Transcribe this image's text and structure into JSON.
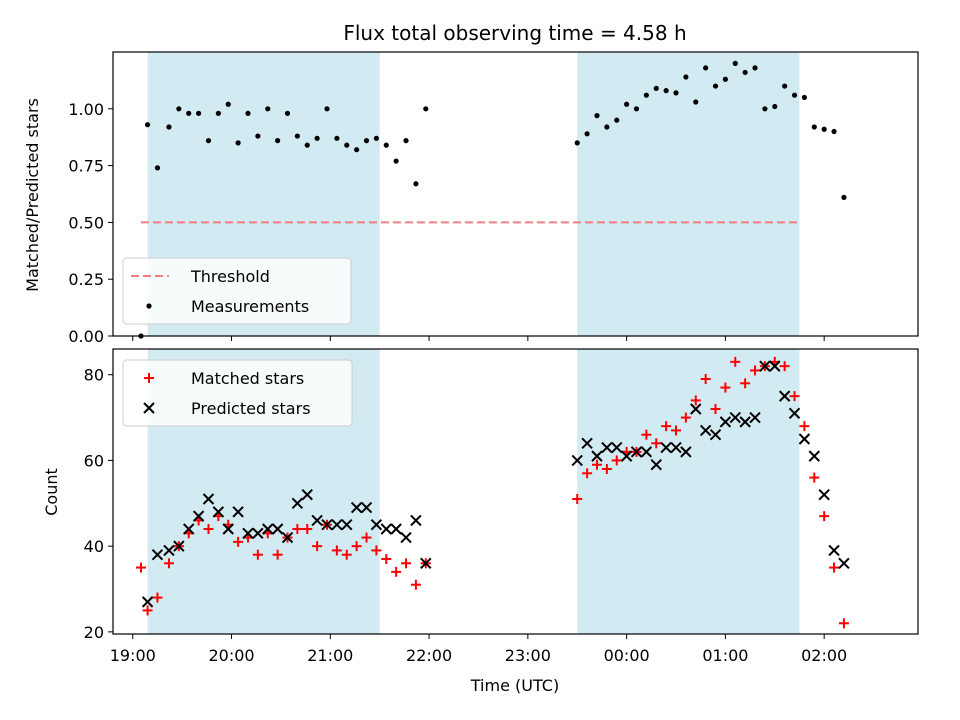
{
  "chart_data": [
    {
      "type": "scatter",
      "title": "Flux total observing time = 4.58 h",
      "ylabel": "Matched/Predicted stars",
      "xlabel": "",
      "ylim": [
        0,
        1.25
      ],
      "yticks": [
        "0.00",
        "0.25",
        "0.50",
        "0.75",
        "1.00"
      ],
      "ytick_values": [
        0,
        0.25,
        0.5,
        0.75,
        1.0
      ],
      "shaded_spans": [
        [
          "19:09",
          "21:30"
        ],
        [
          "23:30",
          "01:45"
        ]
      ],
      "shade_color": "#add8e6",
      "legend_position": "lower-left",
      "grid": false,
      "threshold": {
        "name": "Threshold",
        "y": 0.5,
        "x_start": "19:05",
        "x_end": "01:45",
        "color": "#f08080",
        "style": "dashed"
      },
      "series": [
        {
          "name": "Measurements",
          "marker": "dot",
          "color": "#000000",
          "points": [
            [
              "19:05",
              0.0
            ],
            [
              "19:09",
              0.93
            ],
            [
              "19:15",
              0.74
            ],
            [
              "19:22",
              0.92
            ],
            [
              "19:28",
              1.0
            ],
            [
              "19:34",
              0.98
            ],
            [
              "19:40",
              0.98
            ],
            [
              "19:46",
              0.86
            ],
            [
              "19:52",
              0.98
            ],
            [
              "19:58",
              1.02
            ],
            [
              "20:04",
              0.85
            ],
            [
              "20:10",
              0.98
            ],
            [
              "20:16",
              0.88
            ],
            [
              "20:22",
              1.0
            ],
            [
              "20:28",
              0.86
            ],
            [
              "20:34",
              0.98
            ],
            [
              "20:40",
              0.88
            ],
            [
              "20:46",
              0.84
            ],
            [
              "20:52",
              0.87
            ],
            [
              "20:58",
              1.0
            ],
            [
              "21:04",
              0.87
            ],
            [
              "21:10",
              0.84
            ],
            [
              "21:16",
              0.82
            ],
            [
              "21:22",
              0.86
            ],
            [
              "21:28",
              0.87
            ],
            [
              "21:34",
              0.84
            ],
            [
              "21:40",
              0.77
            ],
            [
              "21:46",
              0.86
            ],
            [
              "21:52",
              0.67
            ],
            [
              "21:58",
              1.0
            ],
            [
              "23:30",
              0.85
            ],
            [
              "23:36",
              0.89
            ],
            [
              "23:42",
              0.97
            ],
            [
              "23:48",
              0.92
            ],
            [
              "23:54",
              0.95
            ],
            [
              "00:00",
              1.02
            ],
            [
              "00:06",
              1.0
            ],
            [
              "00:12",
              1.06
            ],
            [
              "00:18",
              1.09
            ],
            [
              "00:24",
              1.08
            ],
            [
              "00:30",
              1.07
            ],
            [
              "00:36",
              1.14
            ],
            [
              "00:42",
              1.03
            ],
            [
              "00:48",
              1.18
            ],
            [
              "00:54",
              1.1
            ],
            [
              "01:00",
              1.13
            ],
            [
              "01:06",
              1.2
            ],
            [
              "01:12",
              1.16
            ],
            [
              "01:18",
              1.18
            ],
            [
              "01:24",
              1.0
            ],
            [
              "01:30",
              1.01
            ],
            [
              "01:36",
              1.1
            ],
            [
              "01:42",
              1.06
            ],
            [
              "01:48",
              1.05
            ],
            [
              "01:54",
              0.92
            ],
            [
              "02:00",
              0.91
            ],
            [
              "02:06",
              0.9
            ],
            [
              "02:12",
              0.61
            ]
          ]
        }
      ]
    },
    {
      "type": "scatter",
      "title": "",
      "xlabel": "Time (UTC)",
      "ylabel": "Count",
      "ylim": [
        19.5,
        86
      ],
      "yticks": [
        "20",
        "40",
        "60",
        "80"
      ],
      "ytick_values": [
        20,
        40,
        60,
        80
      ],
      "xticks": [
        "19:00",
        "20:00",
        "21:00",
        "22:00",
        "23:00",
        "00:00",
        "01:00",
        "02:00"
      ],
      "shaded_spans": [
        [
          "19:09",
          "21:30"
        ],
        [
          "23:30",
          "01:45"
        ]
      ],
      "shade_color": "#add8e6",
      "legend_position": "upper-left",
      "grid": false,
      "series": [
        {
          "name": "Matched stars",
          "marker": "plus",
          "color": "#ff0000",
          "points": [
            [
              "19:05",
              35
            ],
            [
              "19:09",
              25
            ],
            [
              "19:15",
              28
            ],
            [
              "19:22",
              36
            ],
            [
              "19:28",
              40
            ],
            [
              "19:34",
              43
            ],
            [
              "19:40",
              46
            ],
            [
              "19:46",
              44
            ],
            [
              "19:52",
              47
            ],
            [
              "19:58",
              45
            ],
            [
              "20:04",
              41
            ],
            [
              "20:10",
              42
            ],
            [
              "20:16",
              38
            ],
            [
              "20:22",
              43
            ],
            [
              "20:28",
              38
            ],
            [
              "20:34",
              42
            ],
            [
              "20:40",
              44
            ],
            [
              "20:46",
              44
            ],
            [
              "20:52",
              40
            ],
            [
              "20:58",
              45
            ],
            [
              "21:04",
              39
            ],
            [
              "21:10",
              38
            ],
            [
              "21:16",
              40
            ],
            [
              "21:22",
              42
            ],
            [
              "21:28",
              39
            ],
            [
              "21:34",
              37
            ],
            [
              "21:40",
              34
            ],
            [
              "21:46",
              36
            ],
            [
              "21:52",
              31
            ],
            [
              "21:58",
              36
            ],
            [
              "23:30",
              51
            ],
            [
              "23:36",
              57
            ],
            [
              "23:42",
              59
            ],
            [
              "23:48",
              58
            ],
            [
              "23:54",
              60
            ],
            [
              "00:00",
              62
            ],
            [
              "00:06",
              62
            ],
            [
              "00:12",
              66
            ],
            [
              "00:18",
              64
            ],
            [
              "00:24",
              68
            ],
            [
              "00:30",
              67
            ],
            [
              "00:36",
              70
            ],
            [
              "00:42",
              74
            ],
            [
              "00:48",
              79
            ],
            [
              "00:54",
              72
            ],
            [
              "01:00",
              77
            ],
            [
              "01:06",
              83
            ],
            [
              "01:12",
              78
            ],
            [
              "01:18",
              81
            ],
            [
              "01:24",
              82
            ],
            [
              "01:30",
              83
            ],
            [
              "01:36",
              82
            ],
            [
              "01:42",
              75
            ],
            [
              "01:48",
              68
            ],
            [
              "01:54",
              56
            ],
            [
              "02:00",
              47
            ],
            [
              "02:06",
              35
            ],
            [
              "02:12",
              22
            ]
          ]
        },
        {
          "name": "Predicted stars",
          "marker": "x",
          "color": "#000000",
          "points": [
            [
              "19:09",
              27
            ],
            [
              "19:15",
              38
            ],
            [
              "19:22",
              39
            ],
            [
              "19:28",
              40
            ],
            [
              "19:34",
              44
            ],
            [
              "19:40",
              47
            ],
            [
              "19:46",
              51
            ],
            [
              "19:52",
              48
            ],
            [
              "19:58",
              44
            ],
            [
              "20:04",
              48
            ],
            [
              "20:10",
              43
            ],
            [
              "20:16",
              43
            ],
            [
              "20:22",
              44
            ],
            [
              "20:28",
              44
            ],
            [
              "20:34",
              42
            ],
            [
              "20:40",
              50
            ],
            [
              "20:46",
              52
            ],
            [
              "20:52",
              46
            ],
            [
              "20:58",
              45
            ],
            [
              "21:04",
              45
            ],
            [
              "21:10",
              45
            ],
            [
              "21:16",
              49
            ],
            [
              "21:22",
              49
            ],
            [
              "21:28",
              45
            ],
            [
              "21:34",
              44
            ],
            [
              "21:40",
              44
            ],
            [
              "21:46",
              42
            ],
            [
              "21:52",
              46
            ],
            [
              "21:58",
              36
            ],
            [
              "23:30",
              60
            ],
            [
              "23:36",
              64
            ],
            [
              "23:42",
              61
            ],
            [
              "23:48",
              63
            ],
            [
              "23:54",
              63
            ],
            [
              "00:00",
              61
            ],
            [
              "00:06",
              62
            ],
            [
              "00:12",
              62
            ],
            [
              "00:18",
              59
            ],
            [
              "00:24",
              63
            ],
            [
              "00:30",
              63
            ],
            [
              "00:36",
              62
            ],
            [
              "00:42",
              72
            ],
            [
              "00:48",
              67
            ],
            [
              "00:54",
              66
            ],
            [
              "01:00",
              69
            ],
            [
              "01:06",
              70
            ],
            [
              "01:12",
              69
            ],
            [
              "01:18",
              70
            ],
            [
              "01:24",
              82
            ],
            [
              "01:30",
              82
            ],
            [
              "01:36",
              75
            ],
            [
              "01:42",
              71
            ],
            [
              "01:48",
              65
            ],
            [
              "01:54",
              61
            ],
            [
              "02:00",
              52
            ],
            [
              "02:06",
              39
            ],
            [
              "02:12",
              36
            ]
          ]
        }
      ]
    }
  ]
}
